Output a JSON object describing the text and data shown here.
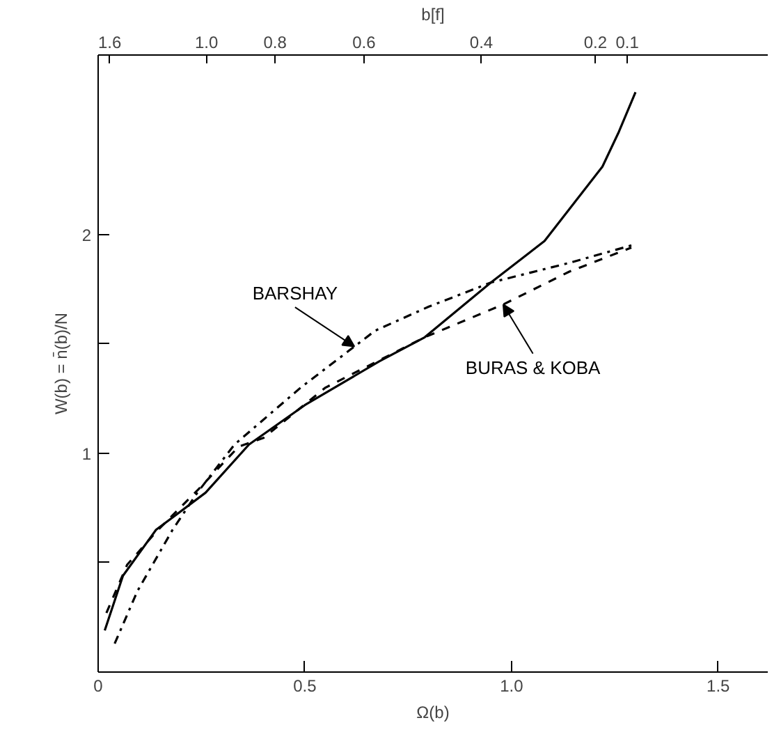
{
  "chart_data": {
    "type": "line",
    "xlabel": "Ω(b)",
    "ylabel": "W(b) = n̄(b)/N",
    "x2label": "b[f]",
    "xlim": [
      0,
      1.62
    ],
    "ylim": [
      0,
      2.82
    ],
    "xticks": [
      0,
      0.5,
      {
        "value": 1.0,
        "label": "1.0"
      },
      1.5
    ],
    "yticks": [
      {
        "value": 0.5,
        "label": null
      },
      1,
      {
        "value": 1.5,
        "label": null
      },
      2
    ],
    "annotations": [
      "1.6",
      "1.0",
      "0.8",
      "0.6",
      "0.4",
      "0.2",
      "0.1"
    ],
    "grid": false,
    "series": [
      {
        "color": "#000000",
        "line_style": "solid",
        "x": [
          0.016,
          0.06,
          0.14,
          0.26,
          0.365,
          0.5,
          0.68,
          0.79,
          0.95,
          1.08,
          1.22,
          1.26,
          1.3
        ],
        "values": [
          0.19,
          0.44,
          0.65,
          0.82,
          1.04,
          1.22,
          1.42,
          1.53,
          1.78,
          1.97,
          2.31,
          2.47,
          2.65
        ]
      },
      {
        "name": "BARSHAY",
        "color": "#000000",
        "line_style": "dashdot",
        "x": [
          0.04,
          0.095,
          0.18,
          0.24,
          0.33,
          0.49,
          0.67,
          0.8,
          0.95,
          1.14,
          1.29
        ],
        "values": [
          0.13,
          0.37,
          0.65,
          0.82,
          1.04,
          1.3,
          1.56,
          1.67,
          1.78,
          1.87,
          1.95
        ]
      },
      {
        "name": "BURAS & KOBA",
        "color": "#000000",
        "line_style": "dashed",
        "x": [
          0.02,
          0.07,
          0.14,
          0.24,
          0.34,
          0.4,
          0.55,
          0.79,
          0.98,
          1.14,
          1.29
        ],
        "values": [
          0.27,
          0.49,
          0.64,
          0.83,
          1.03,
          1.07,
          1.3,
          1.53,
          1.68,
          1.83,
          1.94
        ]
      }
    ]
  }
}
